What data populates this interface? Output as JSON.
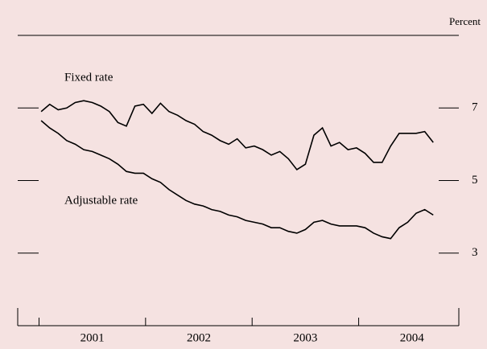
{
  "chart_data": {
    "type": "line",
    "unit_label": "Percent",
    "x": [
      2001.02,
      2001.1,
      2001.18,
      2001.26,
      2001.34,
      2001.42,
      2001.5,
      2001.58,
      2001.66,
      2001.74,
      2001.82,
      2001.9,
      2001.98,
      2002.06,
      2002.14,
      2002.22,
      2002.3,
      2002.38,
      2002.46,
      2002.54,
      2002.62,
      2002.7,
      2002.78,
      2002.86,
      2002.94,
      2003.02,
      2003.1,
      2003.18,
      2003.26,
      2003.34,
      2003.42,
      2003.5,
      2003.58,
      2003.66,
      2003.74,
      2003.82,
      2003.9,
      2003.98,
      2004.06,
      2004.14,
      2004.22,
      2004.3,
      2004.38,
      2004.46,
      2004.54,
      2004.62,
      2004.7
    ],
    "series": [
      {
        "name": "Fixed rate",
        "color": "#000000",
        "values": [
          6.9,
          7.1,
          6.95,
          7.0,
          7.15,
          7.2,
          7.15,
          7.05,
          6.9,
          6.6,
          6.5,
          7.05,
          7.1,
          6.85,
          7.13,
          6.9,
          6.8,
          6.65,
          6.55,
          6.35,
          6.25,
          6.1,
          6.0,
          6.15,
          5.9,
          5.95,
          5.85,
          5.7,
          5.8,
          5.6,
          5.3,
          5.45,
          6.25,
          6.45,
          5.95,
          6.05,
          5.85,
          5.9,
          5.75,
          5.5,
          5.5,
          5.95,
          6.3,
          6.3,
          6.3,
          6.35,
          6.05
        ]
      },
      {
        "name": "Adjustable rate",
        "color": "#000000",
        "values": [
          6.65,
          6.45,
          6.3,
          6.1,
          6.0,
          5.85,
          5.8,
          5.7,
          5.6,
          5.45,
          5.25,
          5.2,
          5.2,
          5.05,
          4.95,
          4.75,
          4.6,
          4.45,
          4.35,
          4.3,
          4.2,
          4.15,
          4.05,
          4.0,
          3.9,
          3.85,
          3.8,
          3.7,
          3.7,
          3.6,
          3.55,
          3.65,
          3.85,
          3.9,
          3.8,
          3.75,
          3.75,
          3.75,
          3.7,
          3.55,
          3.45,
          3.4,
          3.7,
          3.85,
          4.1,
          4.2,
          4.05
        ]
      }
    ],
    "xlim": [
      2000.8,
      2004.94
    ],
    "xticks": [
      2001,
      2002,
      2003,
      2004
    ],
    "ylim": [
      1,
      9
    ],
    "yticks": [
      3,
      5,
      7
    ],
    "background": "#f5e2e1"
  }
}
